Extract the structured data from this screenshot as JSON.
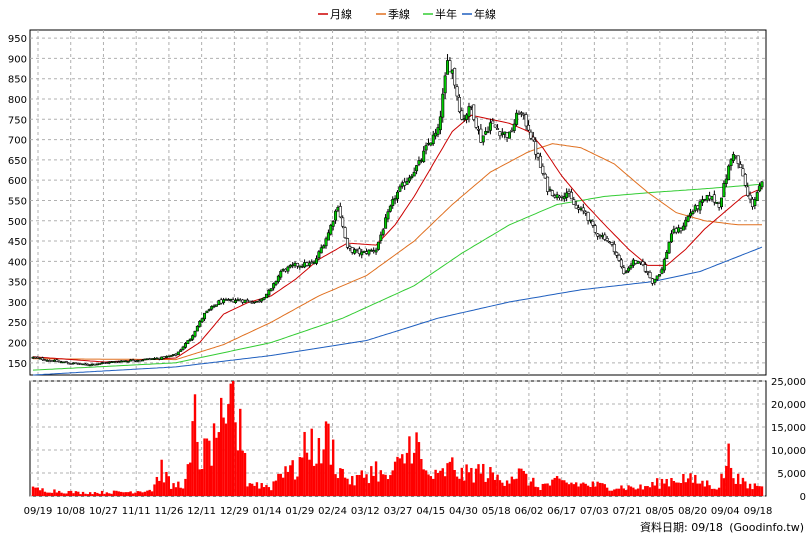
{
  "chart_data": [
    {
      "type": "candlestick",
      "panel": "price",
      "ylim": [
        120,
        970
      ],
      "yticks": [
        150,
        200,
        250,
        300,
        350,
        400,
        450,
        500,
        550,
        600,
        650,
        700,
        750,
        800,
        850,
        900,
        950
      ],
      "grid": true,
      "legend_position": "top-center",
      "legend": [
        {
          "label": "月線",
          "color": "#cc0000"
        },
        {
          "label": "季線",
          "color": "#e07020"
        },
        {
          "label": "半年",
          "color": "#33cc33"
        },
        {
          "label": "年線",
          "color": "#1f5fbf"
        }
      ],
      "close_series": [
        {
          "i": 0,
          "v": 163
        },
        {
          "i": 8,
          "v": 155
        },
        {
          "i": 15,
          "v": 150
        },
        {
          "i": 22,
          "v": 145
        },
        {
          "i": 30,
          "v": 150
        },
        {
          "i": 38,
          "v": 155
        },
        {
          "i": 46,
          "v": 158
        },
        {
          "i": 54,
          "v": 162
        },
        {
          "i": 60,
          "v": 170
        },
        {
          "i": 66,
          "v": 210
        },
        {
          "i": 72,
          "v": 270
        },
        {
          "i": 78,
          "v": 300
        },
        {
          "i": 86,
          "v": 305
        },
        {
          "i": 94,
          "v": 300
        },
        {
          "i": 100,
          "v": 330
        },
        {
          "i": 104,
          "v": 375
        },
        {
          "i": 110,
          "v": 390
        },
        {
          "i": 118,
          "v": 395
        },
        {
          "i": 124,
          "v": 470
        },
        {
          "i": 128,
          "v": 540
        },
        {
          "i": 132,
          "v": 430
        },
        {
          "i": 138,
          "v": 420
        },
        {
          "i": 144,
          "v": 430
        },
        {
          "i": 148,
          "v": 500
        },
        {
          "i": 152,
          "v": 560
        },
        {
          "i": 158,
          "v": 610
        },
        {
          "i": 162,
          "v": 640
        },
        {
          "i": 166,
          "v": 690
        },
        {
          "i": 170,
          "v": 720
        },
        {
          "i": 174,
          "v": 890
        },
        {
          "i": 176,
          "v": 870
        },
        {
          "i": 180,
          "v": 750
        },
        {
          "i": 184,
          "v": 780
        },
        {
          "i": 188,
          "v": 700
        },
        {
          "i": 192,
          "v": 740
        },
        {
          "i": 196,
          "v": 720
        },
        {
          "i": 200,
          "v": 710
        },
        {
          "i": 204,
          "v": 770
        },
        {
          "i": 208,
          "v": 730
        },
        {
          "i": 212,
          "v": 650
        },
        {
          "i": 216,
          "v": 580
        },
        {
          "i": 220,
          "v": 560
        },
        {
          "i": 224,
          "v": 570
        },
        {
          "i": 228,
          "v": 530
        },
        {
          "i": 232,
          "v": 520
        },
        {
          "i": 236,
          "v": 470
        },
        {
          "i": 240,
          "v": 460
        },
        {
          "i": 244,
          "v": 430
        },
        {
          "i": 248,
          "v": 370
        },
        {
          "i": 252,
          "v": 400
        },
        {
          "i": 256,
          "v": 390
        },
        {
          "i": 260,
          "v": 350
        },
        {
          "i": 264,
          "v": 380
        },
        {
          "i": 268,
          "v": 470
        },
        {
          "i": 272,
          "v": 480
        },
        {
          "i": 276,
          "v": 520
        },
        {
          "i": 280,
          "v": 540
        },
        {
          "i": 284,
          "v": 560
        },
        {
          "i": 288,
          "v": 540
        },
        {
          "i": 292,
          "v": 630
        },
        {
          "i": 294,
          "v": 670
        },
        {
          "i": 296,
          "v": 640
        },
        {
          "i": 298,
          "v": 610
        },
        {
          "i": 300,
          "v": 560
        },
        {
          "i": 302,
          "v": 540
        },
        {
          "i": 304,
          "v": 570
        },
        {
          "i": 306,
          "v": 590
        }
      ],
      "ma_month": [
        {
          "i": 0,
          "v": 165
        },
        {
          "i": 30,
          "v": 152
        },
        {
          "i": 60,
          "v": 162
        },
        {
          "i": 70,
          "v": 200
        },
        {
          "i": 80,
          "v": 270
        },
        {
          "i": 90,
          "v": 298
        },
        {
          "i": 100,
          "v": 315
        },
        {
          "i": 110,
          "v": 355
        },
        {
          "i": 120,
          "v": 405
        },
        {
          "i": 132,
          "v": 445
        },
        {
          "i": 144,
          "v": 440
        },
        {
          "i": 152,
          "v": 490
        },
        {
          "i": 160,
          "v": 560
        },
        {
          "i": 168,
          "v": 640
        },
        {
          "i": 176,
          "v": 720
        },
        {
          "i": 184,
          "v": 760
        },
        {
          "i": 192,
          "v": 750
        },
        {
          "i": 200,
          "v": 740
        },
        {
          "i": 208,
          "v": 720
        },
        {
          "i": 214,
          "v": 680
        },
        {
          "i": 222,
          "v": 610
        },
        {
          "i": 232,
          "v": 540
        },
        {
          "i": 240,
          "v": 490
        },
        {
          "i": 250,
          "v": 430
        },
        {
          "i": 258,
          "v": 390
        },
        {
          "i": 266,
          "v": 390
        },
        {
          "i": 274,
          "v": 430
        },
        {
          "i": 282,
          "v": 480
        },
        {
          "i": 290,
          "v": 520
        },
        {
          "i": 298,
          "v": 560
        },
        {
          "i": 306,
          "v": 580
        }
      ],
      "ma_quarter": [
        {
          "i": 0,
          "v": 160
        },
        {
          "i": 60,
          "v": 158
        },
        {
          "i": 80,
          "v": 195
        },
        {
          "i": 100,
          "v": 250
        },
        {
          "i": 120,
          "v": 315
        },
        {
          "i": 140,
          "v": 365
        },
        {
          "i": 160,
          "v": 450
        },
        {
          "i": 176,
          "v": 540
        },
        {
          "i": 192,
          "v": 620
        },
        {
          "i": 208,
          "v": 670
        },
        {
          "i": 218,
          "v": 690
        },
        {
          "i": 230,
          "v": 680
        },
        {
          "i": 244,
          "v": 640
        },
        {
          "i": 258,
          "v": 570
        },
        {
          "i": 270,
          "v": 520
        },
        {
          "i": 282,
          "v": 500
        },
        {
          "i": 296,
          "v": 490
        },
        {
          "i": 306,
          "v": 490
        }
      ],
      "ma_half": [
        {
          "i": 0,
          "v": 132
        },
        {
          "i": 60,
          "v": 150
        },
        {
          "i": 100,
          "v": 200
        },
        {
          "i": 130,
          "v": 260
        },
        {
          "i": 160,
          "v": 340
        },
        {
          "i": 180,
          "v": 420
        },
        {
          "i": 200,
          "v": 490
        },
        {
          "i": 220,
          "v": 540
        },
        {
          "i": 240,
          "v": 560
        },
        {
          "i": 260,
          "v": 570
        },
        {
          "i": 280,
          "v": 578
        },
        {
          "i": 306,
          "v": 590
        }
      ],
      "ma_year": [
        {
          "i": 0,
          "v": 120
        },
        {
          "i": 60,
          "v": 140
        },
        {
          "i": 100,
          "v": 168
        },
        {
          "i": 140,
          "v": 205
        },
        {
          "i": 170,
          "v": 260
        },
        {
          "i": 200,
          "v": 300
        },
        {
          "i": 230,
          "v": 330
        },
        {
          "i": 260,
          "v": 350
        },
        {
          "i": 280,
          "v": 375
        },
        {
          "i": 306,
          "v": 435
        }
      ]
    },
    {
      "type": "bar",
      "panel": "volume",
      "ylim": [
        0,
        25000
      ],
      "yticks_labels": [
        "0",
        "5,000",
        "10,000",
        "15,000",
        "20,000",
        "25,000"
      ],
      "grid": true,
      "bar_color": "#ff0000",
      "volume_profile": [
        {
          "i": 0,
          "v": 1500
        },
        {
          "i": 20,
          "v": 700
        },
        {
          "i": 40,
          "v": 900
        },
        {
          "i": 50,
          "v": 1400
        },
        {
          "i": 54,
          "v": 6000
        },
        {
          "i": 58,
          "v": 2000
        },
        {
          "i": 64,
          "v": 3000
        },
        {
          "i": 66,
          "v": 7000
        },
        {
          "i": 68,
          "v": 17000
        },
        {
          "i": 70,
          "v": 8000
        },
        {
          "i": 74,
          "v": 10000
        },
        {
          "i": 76,
          "v": 11000
        },
        {
          "i": 78,
          "v": 17500
        },
        {
          "i": 80,
          "v": 12000
        },
        {
          "i": 82,
          "v": 14000
        },
        {
          "i": 84,
          "v": 26000
        },
        {
          "i": 86,
          "v": 12000
        },
        {
          "i": 88,
          "v": 15000
        },
        {
          "i": 90,
          "v": 3000
        },
        {
          "i": 100,
          "v": 2000
        },
        {
          "i": 106,
          "v": 7000
        },
        {
          "i": 110,
          "v": 5000
        },
        {
          "i": 116,
          "v": 12000
        },
        {
          "i": 120,
          "v": 9000
        },
        {
          "i": 124,
          "v": 13000
        },
        {
          "i": 128,
          "v": 6000
        },
        {
          "i": 134,
          "v": 3000
        },
        {
          "i": 144,
          "v": 6000
        },
        {
          "i": 148,
          "v": 3500
        },
        {
          "i": 156,
          "v": 8000
        },
        {
          "i": 160,
          "v": 14000
        },
        {
          "i": 164,
          "v": 5000
        },
        {
          "i": 170,
          "v": 4000
        },
        {
          "i": 176,
          "v": 6500
        },
        {
          "i": 180,
          "v": 4500
        },
        {
          "i": 188,
          "v": 5500
        },
        {
          "i": 196,
          "v": 3500
        },
        {
          "i": 204,
          "v": 5000
        },
        {
          "i": 212,
          "v": 2000
        },
        {
          "i": 220,
          "v": 3000
        },
        {
          "i": 232,
          "v": 2500
        },
        {
          "i": 244,
          "v": 2000
        },
        {
          "i": 256,
          "v": 1800
        },
        {
          "i": 264,
          "v": 3000
        },
        {
          "i": 272,
          "v": 4000
        },
        {
          "i": 280,
          "v": 3000
        },
        {
          "i": 288,
          "v": 2000
        },
        {
          "i": 292,
          "v": 8500
        },
        {
          "i": 296,
          "v": 3500
        },
        {
          "i": 300,
          "v": 2000
        },
        {
          "i": 306,
          "v": 2500
        }
      ]
    }
  ],
  "x_tick_labels": [
    "09/19",
    "10/08",
    "10/27",
    "11/11",
    "11/26",
    "12/11",
    "12/29",
    "01/14",
    "01/29",
    "02/24",
    "03/12",
    "03/27",
    "04/15",
    "04/30",
    "05/18",
    "06/02",
    "06/17",
    "07/03",
    "07/21",
    "08/05",
    "08/20",
    "09/04",
    "09/18"
  ],
  "footer": {
    "date_label": "資料日期: 09/18",
    "source": "(Goodinfo.tw)"
  },
  "colors": {
    "up_candle": "#00cc00",
    "down_candle": "#ffffff",
    "candle_outline": "#000000",
    "grid": "#b0b0b0",
    "panel_border": "#000000",
    "volume": "#ff0000"
  }
}
